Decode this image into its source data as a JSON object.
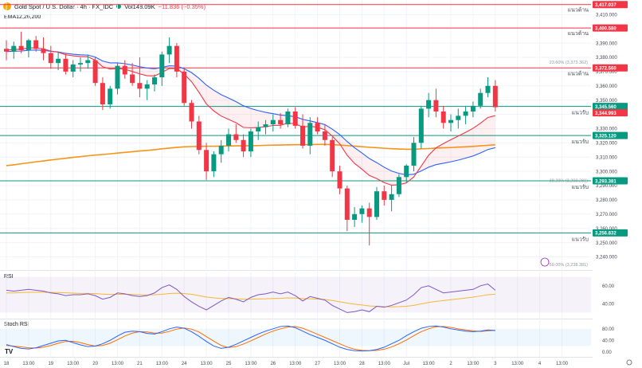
{
  "header": {
    "symbol": "Gold Spot / U.S. Dollar · 4h · FX_IDC",
    "volume": "Vol148.09K",
    "change": "−11.836 (−0.35%)"
  },
  "indicator_labels": {
    "ema": "EMA12,26,200",
    "rsi": "RSI",
    "stoch": "Stoch RSI"
  },
  "colors": {
    "up": "#089981",
    "down": "#f23645",
    "ema12": "#f23645",
    "ema26": "#2962ff",
    "ema200": "#f7931a",
    "resistance": "#f23645",
    "support": "#089981"
  },
  "chart_data": {
    "type": "candlestick",
    "ylim": [
      3233,
      3418
    ],
    "y_ticks": [
      "3,410.000",
      "3,400.000",
      "3,390.000",
      "3,380.000",
      "3,370.000",
      "3,360.000",
      "3,350.000",
      "3,340.000",
      "3,330.000",
      "3,320.000",
      "3,310.000",
      "3,300.000",
      "3,290.000",
      "3,280.000",
      "3,270.000",
      "3,260.000",
      "3,250.000",
      "3,240.000"
    ],
    "y_tick_values": [
      3410,
      3400,
      3390,
      3380,
      3370,
      3360,
      3350,
      3340,
      3330,
      3320,
      3310,
      3300,
      3290,
      3280,
      3270,
      3260,
      3250,
      3240
    ],
    "x_ticks": [
      {
        "label": "18",
        "i": 0
      },
      {
        "label": "13:00",
        "i": 3
      },
      {
        "label": "19",
        "i": 6
      },
      {
        "label": "13:00",
        "i": 9
      },
      {
        "label": "20",
        "i": 12
      },
      {
        "label": "13:00",
        "i": 15
      },
      {
        "label": "21",
        "i": 18
      },
      {
        "label": "13:00",
        "i": 21
      },
      {
        "label": "24",
        "i": 24
      },
      {
        "label": "13:00",
        "i": 27
      },
      {
        "label": "25",
        "i": 30
      },
      {
        "label": "13:00",
        "i": 33
      },
      {
        "label": "26",
        "i": 36
      },
      {
        "label": "13:00",
        "i": 39
      },
      {
        "label": "27",
        "i": 42
      },
      {
        "label": "13:00",
        "i": 45
      },
      {
        "label": "28",
        "i": 48
      },
      {
        "label": "13:00",
        "i": 51
      },
      {
        "label": "Jul",
        "i": 54
      },
      {
        "label": "13:00",
        "i": 57
      },
      {
        "label": "2",
        "i": 60
      },
      {
        "label": "13:00",
        "i": 63
      },
      {
        "label": "3",
        "i": 66
      },
      {
        "label": "13:00",
        "i": 69
      },
      {
        "label": "4",
        "i": 72
      },
      {
        "label": "13:00",
        "i": 75
      }
    ],
    "candles": [
      {
        "o": 3386,
        "h": 3392,
        "l": 3378,
        "c": 3384
      },
      {
        "o": 3384,
        "h": 3391,
        "l": 3379,
        "c": 3388
      },
      {
        "o": 3388,
        "h": 3398,
        "l": 3383,
        "c": 3385
      },
      {
        "o": 3385,
        "h": 3393,
        "l": 3380,
        "c": 3392
      },
      {
        "o": 3392,
        "h": 3395,
        "l": 3384,
        "c": 3386
      },
      {
        "o": 3386,
        "h": 3394,
        "l": 3378,
        "c": 3383
      },
      {
        "o": 3383,
        "h": 3388,
        "l": 3372,
        "c": 3376
      },
      {
        "o": 3376,
        "h": 3384,
        "l": 3371,
        "c": 3379
      },
      {
        "o": 3379,
        "h": 3383,
        "l": 3368,
        "c": 3370
      },
      {
        "o": 3370,
        "h": 3378,
        "l": 3366,
        "c": 3375
      },
      {
        "o": 3375,
        "h": 3380,
        "l": 3370,
        "c": 3376
      },
      {
        "o": 3376,
        "h": 3382,
        "l": 3372,
        "c": 3378
      },
      {
        "o": 3378,
        "h": 3380,
        "l": 3360,
        "c": 3362
      },
      {
        "o": 3362,
        "h": 3366,
        "l": 3343,
        "c": 3347
      },
      {
        "o": 3347,
        "h": 3360,
        "l": 3344,
        "c": 3358
      },
      {
        "o": 3358,
        "h": 3376,
        "l": 3354,
        "c": 3374
      },
      {
        "o": 3374,
        "h": 3378,
        "l": 3365,
        "c": 3368
      },
      {
        "o": 3368,
        "h": 3376,
        "l": 3360,
        "c": 3362
      },
      {
        "o": 3362,
        "h": 3380,
        "l": 3352,
        "c": 3358
      },
      {
        "o": 3358,
        "h": 3364,
        "l": 3350,
        "c": 3361
      },
      {
        "o": 3361,
        "h": 3368,
        "l": 3356,
        "c": 3366
      },
      {
        "o": 3366,
        "h": 3384,
        "l": 3360,
        "c": 3382
      },
      {
        "o": 3382,
        "h": 3394,
        "l": 3376,
        "c": 3388
      },
      {
        "o": 3388,
        "h": 3390,
        "l": 3366,
        "c": 3370
      },
      {
        "o": 3370,
        "h": 3373,
        "l": 3346,
        "c": 3348
      },
      {
        "o": 3348,
        "h": 3350,
        "l": 3330,
        "c": 3335
      },
      {
        "o": 3335,
        "h": 3339,
        "l": 3312,
        "c": 3315
      },
      {
        "o": 3315,
        "h": 3320,
        "l": 3294,
        "c": 3300
      },
      {
        "o": 3300,
        "h": 3314,
        "l": 3296,
        "c": 3312
      },
      {
        "o": 3312,
        "h": 3322,
        "l": 3306,
        "c": 3318
      },
      {
        "o": 3318,
        "h": 3330,
        "l": 3314,
        "c": 3326
      },
      {
        "o": 3326,
        "h": 3333,
        "l": 3320,
        "c": 3322
      },
      {
        "o": 3322,
        "h": 3326,
        "l": 3310,
        "c": 3314
      },
      {
        "o": 3314,
        "h": 3330,
        "l": 3310,
        "c": 3328
      },
      {
        "o": 3328,
        "h": 3335,
        "l": 3322,
        "c": 3331
      },
      {
        "o": 3331,
        "h": 3336,
        "l": 3326,
        "c": 3333
      },
      {
        "o": 3333,
        "h": 3340,
        "l": 3328,
        "c": 3336
      },
      {
        "o": 3336,
        "h": 3341,
        "l": 3330,
        "c": 3333
      },
      {
        "o": 3333,
        "h": 3344,
        "l": 3331,
        "c": 3342
      },
      {
        "o": 3342,
        "h": 3345,
        "l": 3330,
        "c": 3332
      },
      {
        "o": 3332,
        "h": 3340,
        "l": 3316,
        "c": 3318
      },
      {
        "o": 3318,
        "h": 3338,
        "l": 3312,
        "c": 3334
      },
      {
        "o": 3334,
        "h": 3338,
        "l": 3326,
        "c": 3328
      },
      {
        "o": 3328,
        "h": 3333,
        "l": 3318,
        "c": 3322
      },
      {
        "o": 3322,
        "h": 3324,
        "l": 3296,
        "c": 3300
      },
      {
        "o": 3300,
        "h": 3304,
        "l": 3284,
        "c": 3288
      },
      {
        "o": 3288,
        "h": 3290,
        "l": 3258,
        "c": 3266
      },
      {
        "o": 3266,
        "h": 3275,
        "l": 3261,
        "c": 3270
      },
      {
        "o": 3270,
        "h": 3276,
        "l": 3264,
        "c": 3274
      },
      {
        "o": 3274,
        "h": 3278,
        "l": 3248,
        "c": 3268
      },
      {
        "o": 3268,
        "h": 3289,
        "l": 3266,
        "c": 3286
      },
      {
        "o": 3286,
        "h": 3290,
        "l": 3276,
        "c": 3280
      },
      {
        "o": 3280,
        "h": 3290,
        "l": 3272,
        "c": 3284
      },
      {
        "o": 3284,
        "h": 3298,
        "l": 3282,
        "c": 3296
      },
      {
        "o": 3296,
        "h": 3305,
        "l": 3292,
        "c": 3304
      },
      {
        "o": 3304,
        "h": 3324,
        "l": 3300,
        "c": 3320
      },
      {
        "o": 3320,
        "h": 3346,
        "l": 3316,
        "c": 3344
      },
      {
        "o": 3344,
        "h": 3355,
        "l": 3338,
        "c": 3350
      },
      {
        "o": 3350,
        "h": 3358,
        "l": 3338,
        "c": 3342
      },
      {
        "o": 3342,
        "h": 3346,
        "l": 3330,
        "c": 3334
      },
      {
        "o": 3334,
        "h": 3340,
        "l": 3328,
        "c": 3336
      },
      {
        "o": 3336,
        "h": 3344,
        "l": 3330,
        "c": 3339
      },
      {
        "o": 3339,
        "h": 3346,
        "l": 3333,
        "c": 3342
      },
      {
        "o": 3342,
        "h": 3349,
        "l": 3338,
        "c": 3346
      },
      {
        "o": 3346,
        "h": 3358,
        "l": 3344,
        "c": 3355
      },
      {
        "o": 3355,
        "h": 3366,
        "l": 3352,
        "c": 3360
      },
      {
        "o": 3360,
        "h": 3364,
        "l": 3342,
        "c": 3345
      }
    ],
    "ema12": [
      3385,
      3385.6,
      3385.6,
      3386.7,
      3386.6,
      3386,
      3384.4,
      3383.6,
      3381.8,
      3381.1,
      3380.6,
      3380.4,
      3378,
      3373.4,
      3371.8,
      3372.2,
      3371.6,
      3370.1,
      3368.4,
      3367.1,
      3366.9,
      3369.4,
      3372.2,
      3372.1,
      3368.2,
      3362.9,
      3355.5,
      3347.3,
      3342.4,
      3338.8,
      3336.5,
      3334.1,
      3330.8,
      3330.6,
      3330.8,
      3331.3,
      3332.2,
      3332.3,
      3333.8,
      3333.4,
      3331.1,
      3331.6,
      3330.9,
      3329.2,
      3324.7,
      3319.3,
      3311.3,
      3305.6,
      3301.5,
      3297.1,
      3294.9,
      3292.1,
      3290.3,
      3290.6,
      3291.9,
      3296.1,
      3303.7,
      3311.3,
      3316.5,
      3319.5,
      3322.2,
      3324.8,
      3327.4,
      3330.2,
      3333.8,
      3337.8,
      3339.1
    ],
    "ema26": [
      3384,
      3384.3,
      3384.4,
      3385,
      3385.1,
      3384.9,
      3384.2,
      3383.8,
      3382.8,
      3382.2,
      3381.8,
      3381.6,
      3380.2,
      3377.4,
      3376.1,
      3376.1,
      3375.6,
      3374.6,
      3373.4,
      3372.5,
      3372,
      3372.9,
      3374.1,
      3373.9,
      3372,
      3369.3,
      3365.3,
      3360.5,
      3356.9,
      3353.8,
      3351.4,
      3348.9,
      3346,
      3344.1,
      3342.6,
      3341.4,
      3340.5,
      3339.5,
      3339.1,
      3338.3,
      3336.5,
      3335.4,
      3334.2,
      3332.8,
      3329.6,
      3325.8,
      3320.9,
      3316.6,
      3312.9,
      3309,
      3306.1,
      3302.9,
      3300.2,
      3298.6,
      3297.5,
      3298,
      3300.3,
      3302.9,
      3304.7,
      3305.7,
      3306.7,
      3307.9,
      3309.3,
      3310.8,
      3312.9,
      3315.3,
      3316.6
    ],
    "ema200": [
      3304,
      3304.6,
      3305.3,
      3306,
      3306.7,
      3307.3,
      3308,
      3308.6,
      3309.2,
      3309.8,
      3310.3,
      3310.9,
      3311.4,
      3311.8,
      3312.3,
      3312.8,
      3313.3,
      3313.8,
      3314.3,
      3314.7,
      3315.2,
      3315.8,
      3316.3,
      3316.8,
      3317.2,
      3317.4,
      3317.5,
      3317.6,
      3317.6,
      3317.7,
      3317.8,
      3317.9,
      3317.9,
      3318,
      3318.1,
      3318.3,
      3318.4,
      3318.5,
      3318.6,
      3318.7,
      3318.7,
      3318.8,
      3318.9,
      3318.9,
      3318.7,
      3318.5,
      3318.1,
      3317.7,
      3317.3,
      3316.9,
      3316.6,
      3316.2,
      3315.9,
      3315.7,
      3315.5,
      3315.5,
      3315.8,
      3316,
      3316.3,
      3316.5,
      3316.7,
      3317,
      3317.2,
      3317.5,
      3317.9,
      3318.3,
      3318.6
    ],
    "levels": [
      {
        "value": 3417.037,
        "label": "3,417.037",
        "zone": "แนวต้าน",
        "kind": "resistance"
      },
      {
        "value": 3400.58,
        "label": "3,400.580",
        "zone": "แนวต้าน",
        "kind": "resistance"
      },
      {
        "value": 3372.56,
        "label": "3,372.560",
        "zone": "แนวต้าน",
        "kind": "resistance"
      },
      {
        "value": 3345.56,
        "label": "3,345.560",
        "zone": "แนวรับ",
        "kind": "support"
      },
      {
        "value": 3325.12,
        "label": "3,325.120",
        "zone": "แนวรับ",
        "kind": "support"
      },
      {
        "value": 3293.381,
        "label": "3,293.381",
        "zone": "แนวรับ",
        "kind": "support"
      },
      {
        "value": 3256.832,
        "label": "3,256.832",
        "zone": "แนวรับ",
        "kind": "support"
      }
    ],
    "last_price": {
      "value": 3344.993,
      "label": "3,344.993"
    },
    "fib_labels": [
      {
        "value": 3375.5,
        "text": "23.60% (3,373.362)"
      },
      {
        "value": 3292.5,
        "text": "38.20% (3,293.281)"
      },
      {
        "value": 3233.5,
        "text": "50.00% (3,238.381)"
      }
    ],
    "rsi": {
      "ticks": [
        "60.00",
        "40.00"
      ],
      "tick_values": [
        60,
        40
      ],
      "ylim": [
        25,
        75
      ],
      "band": [
        30,
        70
      ],
      "values": [
        55,
        54,
        55,
        56,
        55,
        54,
        52,
        51,
        49,
        50,
        50,
        51,
        49,
        45,
        47,
        52,
        51,
        49,
        48,
        49,
        52,
        58,
        61,
        56,
        48,
        42,
        37,
        33,
        38,
        43,
        47,
        45,
        42,
        47,
        50,
        51,
        53,
        51,
        53,
        49,
        43,
        48,
        46,
        44,
        38,
        34,
        30,
        31,
        33,
        31,
        37,
        36,
        38,
        41,
        44,
        50,
        58,
        60,
        56,
        52,
        53,
        54,
        55,
        56,
        60,
        62,
        55
      ],
      "signal": [
        52,
        52,
        52.5,
        52.7,
        52.8,
        52.8,
        52.6,
        52.4,
        52.1,
        51.8,
        51.5,
        51.4,
        51.2,
        50.7,
        50.3,
        50.4,
        50.4,
        50.3,
        50,
        49.8,
        50,
        50.5,
        51.3,
        51.7,
        51.3,
        50.4,
        49,
        47.4,
        46.4,
        45.9,
        45.7,
        45.4,
        45,
        45,
        45.2,
        45.4,
        45.8,
        46,
        46.4,
        46.3,
        45.7,
        45.4,
        45.1,
        44.6,
        43.5,
        42.1,
        40.6,
        39.4,
        38.5,
        37.4,
        37,
        36.6,
        36.4,
        36.6,
        37.1,
        38.1,
        39.7,
        41.3,
        42.5,
        43.4,
        44.4,
        45.3,
        46.3,
        47.3,
        48.6,
        50,
        50.6
      ]
    },
    "stoch": {
      "ticks": [
        "80.00",
        "40.00",
        "0.00"
      ],
      "tick_values": [
        80,
        40,
        0
      ],
      "ylim": [
        -12,
        110
      ],
      "band": [
        20,
        80
      ],
      "k": [
        25,
        18,
        12,
        10,
        14,
        22,
        30,
        38,
        40,
        32,
        24,
        18,
        20,
        28,
        40,
        55,
        68,
        72,
        70,
        64,
        62,
        70,
        80,
        86,
        82,
        70,
        54,
        36,
        20,
        12,
        16,
        26,
        38,
        50,
        62,
        72,
        80,
        88,
        90,
        84,
        72,
        60,
        50,
        40,
        28,
        16,
        8,
        4,
        3,
        4,
        8,
        16,
        28,
        40,
        56,
        70,
        82,
        88,
        90,
        86,
        80,
        76,
        72,
        70,
        72,
        76,
        74
      ],
      "d": [
        22,
        20,
        17,
        14,
        13,
        16,
        22,
        30,
        36,
        37,
        32,
        25,
        20,
        22,
        30,
        42,
        55,
        65,
        70,
        69,
        65,
        65,
        71,
        79,
        83,
        79,
        69,
        53,
        37,
        22,
        15,
        18,
        27,
        38,
        50,
        62,
        72,
        80,
        86,
        88,
        82,
        72,
        61,
        50,
        39,
        28,
        17,
        9,
        5,
        4,
        5,
        9,
        17,
        28,
        41,
        56,
        70,
        80,
        87,
        88,
        85,
        80,
        76,
        73,
        71,
        73,
        75
      ]
    }
  }
}
